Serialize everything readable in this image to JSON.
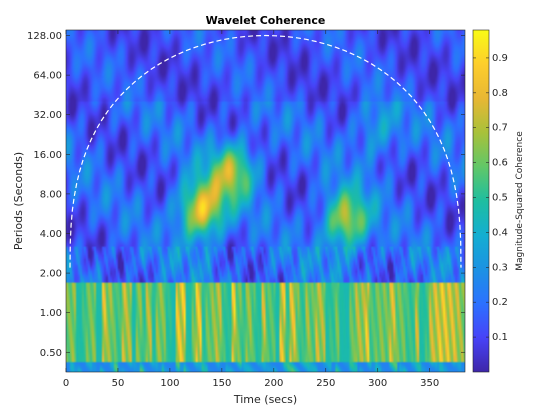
{
  "chart_data": {
    "type": "heatmap",
    "title": "Wavelet Coherence",
    "xlabel": "Time (secs)",
    "ylabel": "Periods (Seconds)",
    "colorbar_label": "Magnitude-Squared Coherence",
    "x_range": [
      0,
      384
    ],
    "y_range_period": [
      0.354,
      141
    ],
    "y_scale": "log2",
    "x_ticks": [
      0,
      50,
      100,
      150,
      200,
      250,
      300,
      350
    ],
    "x_tick_labels": [
      "0",
      "50",
      "100",
      "150",
      "200",
      "250",
      "300",
      "350"
    ],
    "y_ticks": [
      0.5,
      1,
      2,
      4,
      8,
      16,
      32,
      64,
      128
    ],
    "y_tick_labels": [
      "0.50",
      "1.00",
      "2.00",
      "4.00",
      "8.00",
      "16.00",
      "32.00",
      "64.00",
      "128.00"
    ],
    "colorbar_range": [
      0.0,
      0.98
    ],
    "colorbar_ticks": [
      0.1,
      0.2,
      0.3,
      0.4,
      0.5,
      0.6,
      0.7,
      0.8,
      0.9
    ],
    "colorbar_tick_labels": [
      "0.1",
      "0.2",
      "0.3",
      "0.4",
      "0.5",
      "0.6",
      "0.7",
      "0.8",
      "0.9"
    ],
    "colormap": "parula",
    "cone_of_influence": {
      "style": "dashed",
      "color": "#ffffff",
      "apex_time": 192,
      "apex_period": 128
    },
    "high_coherence_regions": [
      {
        "time": 130,
        "period": 6,
        "coherence": 0.95
      },
      {
        "time": 160,
        "period": 12,
        "coherence": 0.7
      },
      {
        "time": 270,
        "period": 5,
        "coherence": 0.8
      },
      {
        "time": 300,
        "period": 24,
        "coherence": 0.3
      },
      {
        "time": 200,
        "period": 1.0,
        "coherence": 0.85
      }
    ],
    "grid": false,
    "legend": "none"
  }
}
